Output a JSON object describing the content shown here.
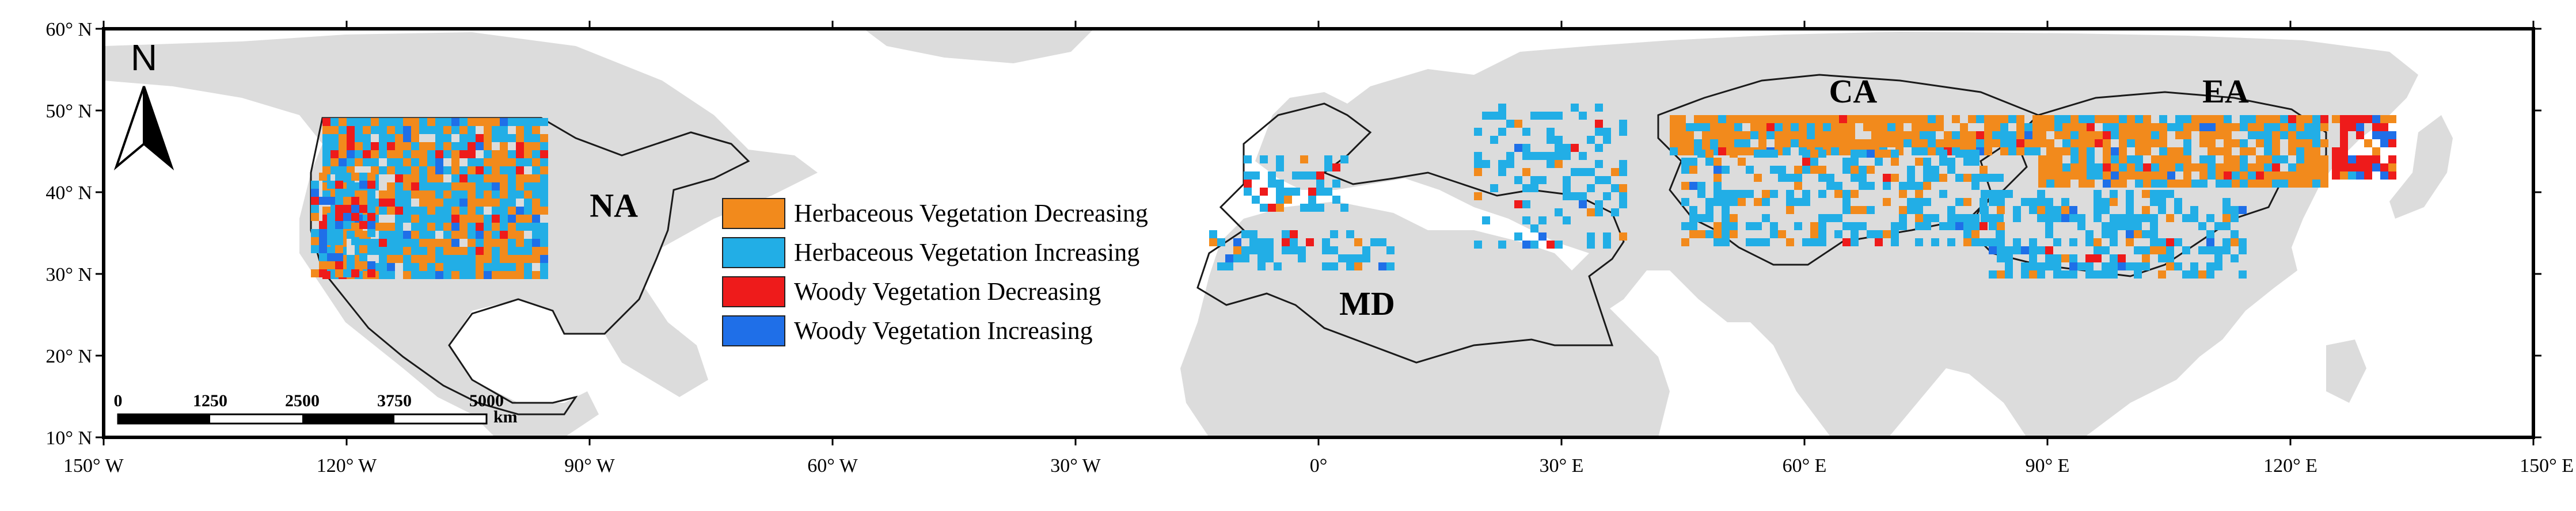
{
  "map": {
    "extent": {
      "lon": [
        -150,
        150
      ],
      "lat": [
        10,
        60
      ]
    },
    "lat_ticks": [
      {
        "value": 60,
        "label": "60° N"
      },
      {
        "value": 50,
        "label": "50° N"
      },
      {
        "value": 40,
        "label": "40° N"
      },
      {
        "value": 30,
        "label": "30° N"
      },
      {
        "value": 20,
        "label": "20° N"
      },
      {
        "value": 10,
        "label": "10° N"
      }
    ],
    "lon_ticks": [
      {
        "value": -150,
        "label": "150° W"
      },
      {
        "value": -120,
        "label": "120° W"
      },
      {
        "value": -90,
        "label": "90° W"
      },
      {
        "value": -60,
        "label": "60° W"
      },
      {
        "value": -30,
        "label": "30° W"
      },
      {
        "value": 0,
        "label": "0°"
      },
      {
        "value": 30,
        "label": "30° E"
      },
      {
        "value": 60,
        "label": "60° E"
      },
      {
        "value": 90,
        "label": "90° E"
      },
      {
        "value": 120,
        "label": "120° E"
      },
      {
        "value": 150,
        "label": "150° E"
      }
    ],
    "regions": [
      {
        "id": "na",
        "label": "NA",
        "lon": -87,
        "lat": 37
      },
      {
        "id": "md",
        "label": "MD",
        "lon": 6,
        "lat": 25
      },
      {
        "id": "ca",
        "label": "CA",
        "lon": 66,
        "lat": 51
      },
      {
        "id": "ea",
        "label": "EA",
        "lon": 112,
        "lat": 51
      }
    ],
    "north_arrow": {
      "label": "N"
    },
    "scale_bar": {
      "ticks": [
        "0",
        "1250",
        "2500",
        "3750",
        "5000"
      ],
      "unit": "km"
    },
    "legend": [
      {
        "label": "Herbaceous Vegetation Decreasing",
        "color": "#f28a1c"
      },
      {
        "label": "Herbaceous Vegetation Increasing",
        "color": "#22aee6"
      },
      {
        "label": "Woody Vegetation Decreasing",
        "color": "#ee1b1b"
      },
      {
        "label": "Woody Vegetation Increasing",
        "color": "#1f6fe8"
      }
    ],
    "colors": {
      "land": "#dcdcdc",
      "ocean": "#ffffff",
      "boundary": "#1a1a1a",
      "frame": "#000000"
    }
  }
}
